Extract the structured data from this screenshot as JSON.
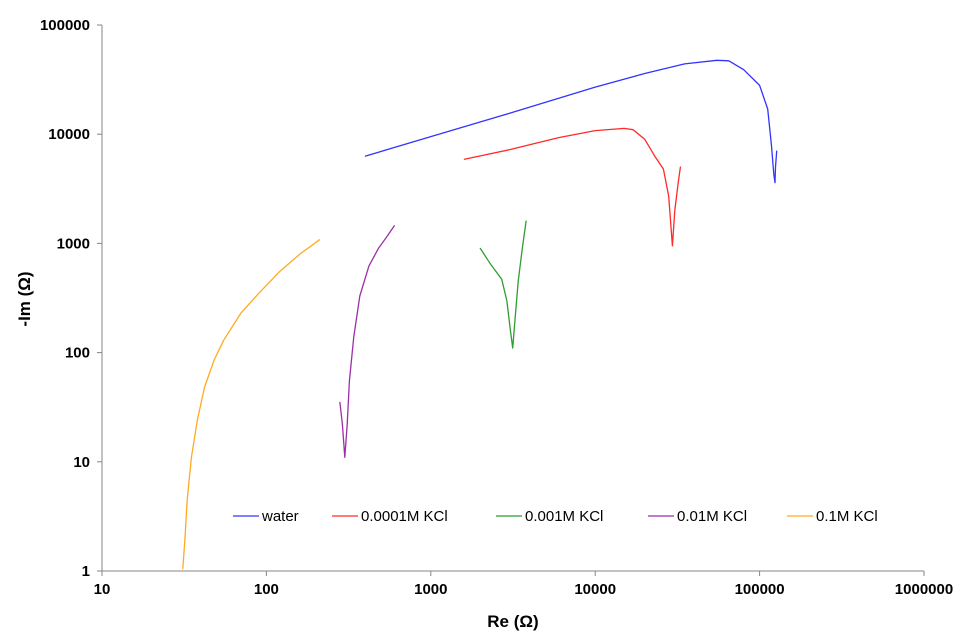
{
  "chart_data": {
    "type": "line",
    "title": "",
    "xlabel": "Re (Ω)",
    "ylabel": "-Im (Ω)",
    "x_scale": "log",
    "y_scale": "log",
    "xlim": [
      10,
      1000000
    ],
    "ylim": [
      1,
      100000
    ],
    "x_tick_labels": [
      "10",
      "100",
      "1000",
      "10000",
      "100000",
      "1000000"
    ],
    "y_tick_labels": [
      "1",
      "10",
      "100",
      "1000",
      "10000",
      "100000"
    ],
    "grid": false,
    "legend_position": "bottom-right inside plot",
    "series": [
      {
        "name": "water",
        "color": "#3333ff",
        "points": [
          [
            400,
            6300
          ],
          [
            1000,
            9500
          ],
          [
            3000,
            15500
          ],
          [
            10000,
            27000
          ],
          [
            20000,
            36000
          ],
          [
            35000,
            44000
          ],
          [
            55000,
            47500
          ],
          [
            65000,
            47000
          ],
          [
            80000,
            39000
          ],
          [
            100000,
            28000
          ],
          [
            112000,
            17000
          ],
          [
            118000,
            8000
          ],
          [
            122000,
            4300
          ],
          [
            124000,
            3600
          ],
          [
            125000,
            5000
          ],
          [
            127000,
            7000
          ]
        ]
      },
      {
        "name": "0.0001M KCl",
        "color": "#ff2a2a",
        "points": [
          [
            1600,
            5900
          ],
          [
            3000,
            7200
          ],
          [
            6000,
            9300
          ],
          [
            10000,
            10800
          ],
          [
            15000,
            11300
          ],
          [
            17000,
            11000
          ],
          [
            20000,
            9000
          ],
          [
            23000,
            6300
          ],
          [
            26000,
            4800
          ],
          [
            28000,
            2700
          ],
          [
            29500,
            950
          ],
          [
            30500,
            2000
          ],
          [
            32000,
            3600
          ],
          [
            33000,
            5000
          ]
        ]
      },
      {
        "name": "0.001M KCl",
        "color": "#2e9e2e",
        "points": [
          [
            2000,
            900
          ],
          [
            2300,
            650
          ],
          [
            2700,
            470
          ],
          [
            2900,
            300
          ],
          [
            3050,
            160
          ],
          [
            3150,
            110
          ],
          [
            3250,
            200
          ],
          [
            3400,
            450
          ],
          [
            3600,
            900
          ],
          [
            3800,
            1600
          ]
        ]
      },
      {
        "name": "0.01M KCl",
        "color": "#9b2fa8",
        "points": [
          [
            280,
            35
          ],
          [
            290,
            22
          ],
          [
            300,
            11
          ],
          [
            310,
            22
          ],
          [
            320,
            55
          ],
          [
            340,
            140
          ],
          [
            370,
            330
          ],
          [
            420,
            620
          ],
          [
            480,
            900
          ],
          [
            540,
            1150
          ],
          [
            600,
            1450
          ]
        ]
      },
      {
        "name": "0.1M KCl",
        "color": "#ffaa22",
        "points": [
          [
            31,
            1.05
          ],
          [
            32,
            2
          ],
          [
            33,
            4.5
          ],
          [
            35,
            11
          ],
          [
            38,
            24
          ],
          [
            42,
            48
          ],
          [
            48,
            85
          ],
          [
            55,
            130
          ],
          [
            70,
            230
          ],
          [
            90,
            350
          ],
          [
            120,
            550
          ],
          [
            160,
            800
          ],
          [
            210,
            1080
          ]
        ]
      }
    ]
  }
}
